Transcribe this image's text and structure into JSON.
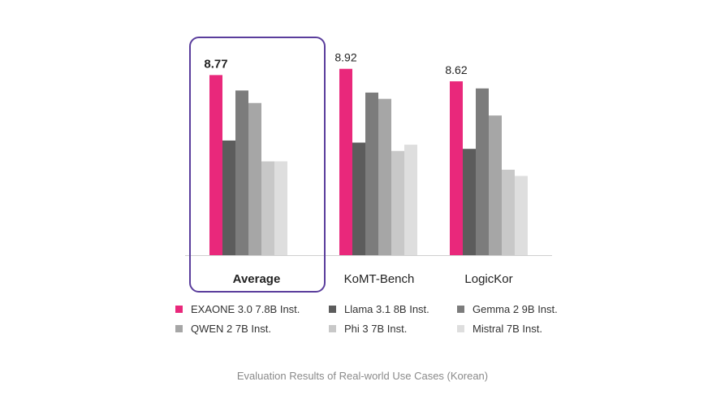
{
  "chart_data": {
    "type": "bar",
    "title": "",
    "categories": [
      "Average",
      "KoMT-Bench",
      "LogicKor"
    ],
    "highlighted_category": "Average",
    "series": [
      {
        "name": "EXAONE 3.0 7.8B Inst.",
        "color": "#e9287b",
        "values": [
          8.77,
          8.92,
          8.62
        ]
      },
      {
        "name": "Llama 3.1 8B Inst.",
        "color": "#5c5c5c",
        "values": [
          7.2,
          7.15,
          7.0
        ]
      },
      {
        "name": "Gemma 2 9B Inst.",
        "color": "#7c7c7c",
        "values": [
          8.4,
          8.35,
          8.45
        ]
      },
      {
        "name": "QWEN 2 7B Inst.",
        "color": "#a6a6a6",
        "values": [
          8.1,
          8.2,
          7.8
        ]
      },
      {
        "name": "Phi 3 7B Inst.",
        "color": "#c8c8c8",
        "values": [
          6.7,
          6.95,
          6.5
        ]
      },
      {
        "name": "Mistral 7B Inst.",
        "color": "#dedede",
        "values": [
          6.7,
          7.1,
          6.35
        ]
      }
    ],
    "data_labels": {
      "Average": "8.77",
      "KoMT-Bench": "8.92",
      "LogicKor": "8.62"
    },
    "xlabel": "",
    "ylabel": "",
    "ylim": [
      4.45,
      9.05
    ],
    "grid": false,
    "legend_position": "bottom"
  },
  "caption": "Evaluation Results of Real-world Use Cases (Korean)"
}
